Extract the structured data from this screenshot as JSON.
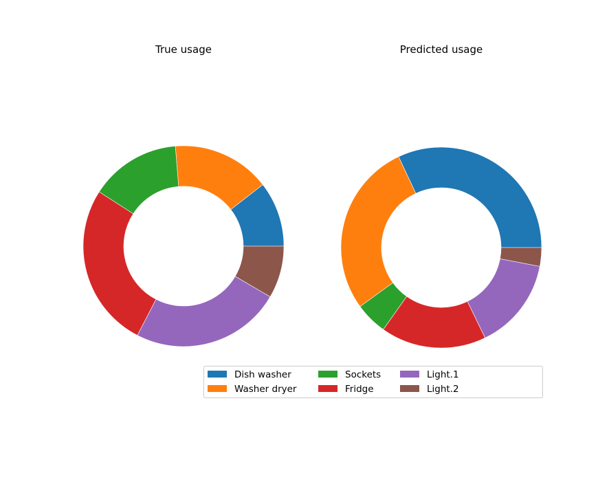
{
  "chart_data": [
    {
      "type": "pie",
      "donut": true,
      "title": "True usage",
      "categories": [
        "Dish washer",
        "Washer dryer",
        "Sockets",
        "Fridge",
        "Light.1",
        "Light.2"
      ],
      "values": [
        10.5,
        15.8,
        14.6,
        26.5,
        24.2,
        8.4
      ],
      "start_angle_deg": 0,
      "direction": "counterclockwise"
    },
    {
      "type": "pie",
      "donut": true,
      "title": "Predicted usage",
      "categories": [
        "Dish washer",
        "Washer dryer",
        "Sockets",
        "Fridge",
        "Light.1",
        "Light.2"
      ],
      "values": [
        32.0,
        28.0,
        5.2,
        17.0,
        14.8,
        3.0
      ],
      "start_angle_deg": 0,
      "direction": "counterclockwise"
    }
  ],
  "legend": {
    "placement": "lower-right",
    "columns": 4,
    "items": [
      {
        "label": "Dish washer",
        "color": "#1f77b4"
      },
      {
        "label": "Washer dryer",
        "color": "#ff7f0e"
      },
      {
        "label": "Sockets",
        "color": "#2ca02c"
      },
      {
        "label": "Fridge",
        "color": "#d62728"
      },
      {
        "label": "Light.1",
        "color": "#9467bd"
      },
      {
        "label": "Light.2",
        "color": "#8c564b"
      }
    ]
  }
}
